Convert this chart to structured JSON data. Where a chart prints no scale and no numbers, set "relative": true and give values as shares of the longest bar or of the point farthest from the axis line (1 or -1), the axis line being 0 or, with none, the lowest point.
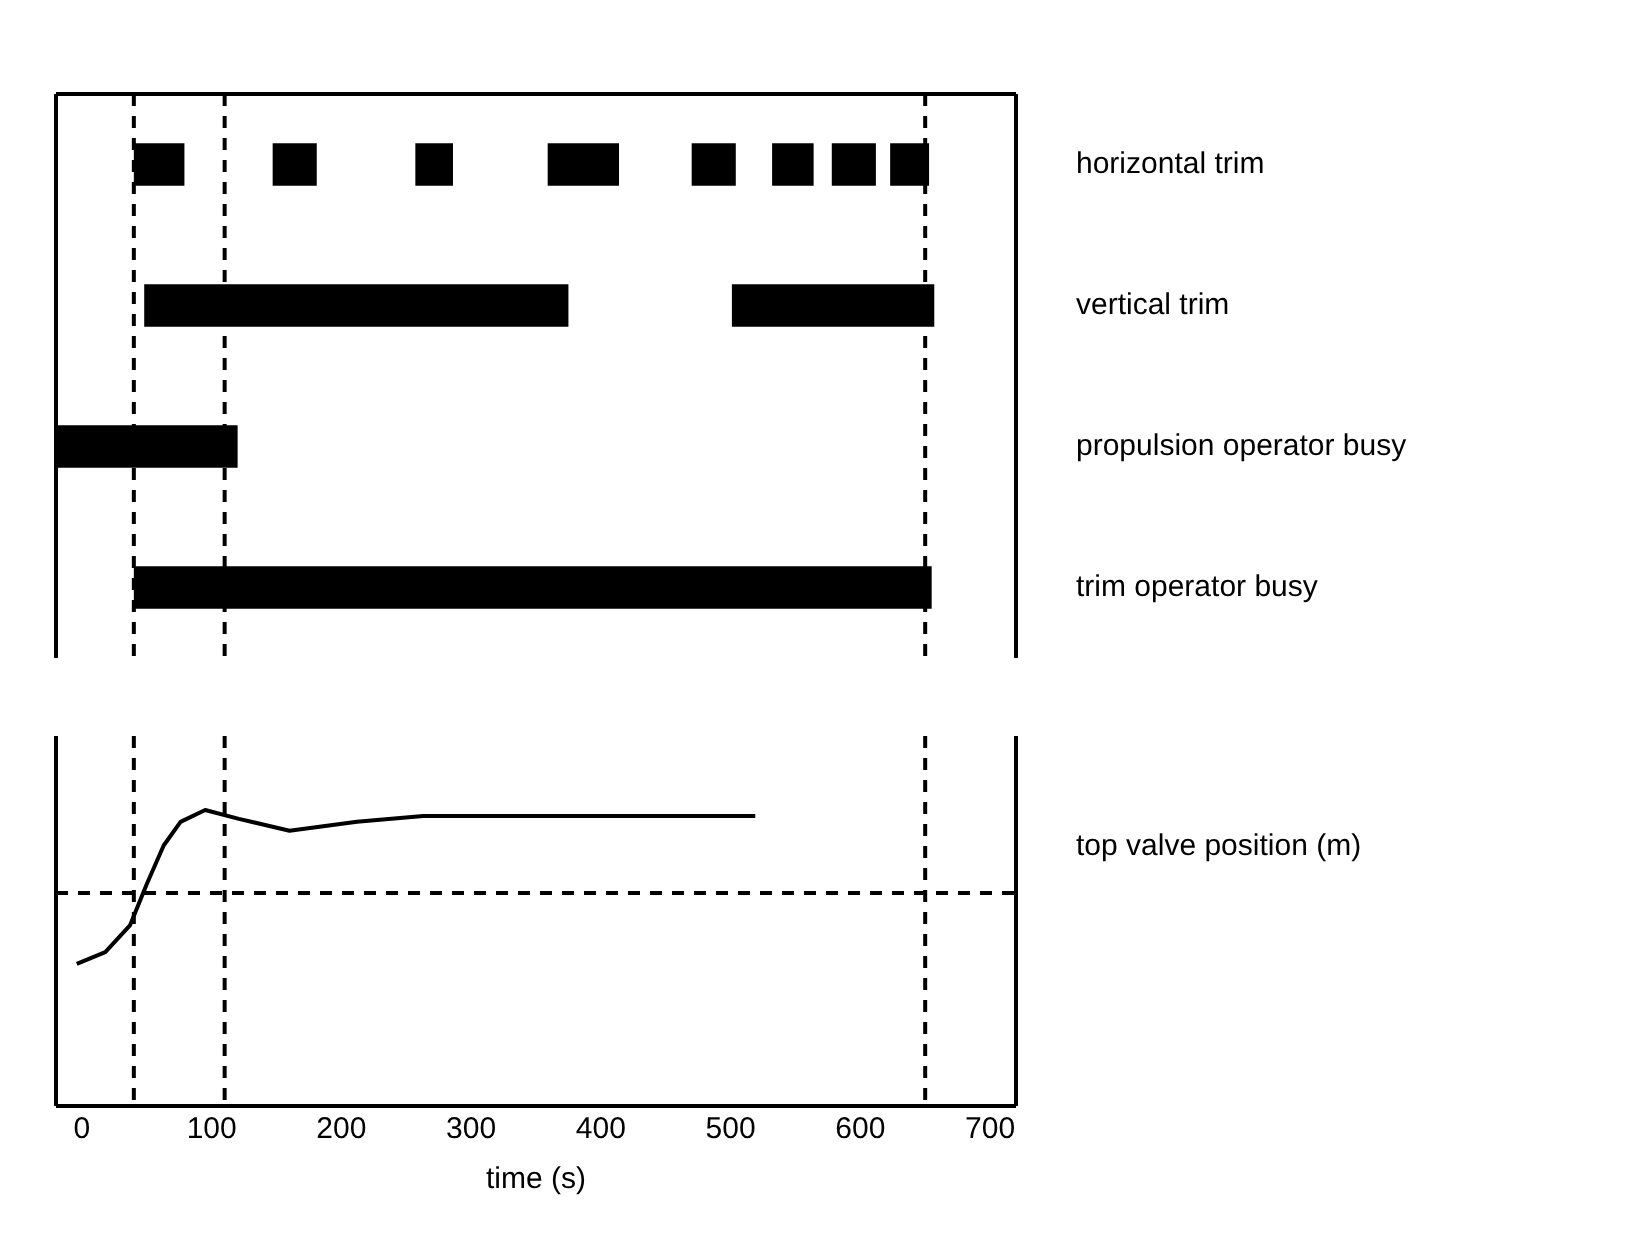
{
  "chart_data": [
    {
      "type": "bar",
      "orientation": "horizontal",
      "categories": [
        "horizontal trim",
        "vertical trim",
        "propulsion operator busy",
        "trim operator busy"
      ],
      "xlim": [
        -20,
        720
      ],
      "xticks": [
        0,
        100,
        200,
        300,
        400,
        500,
        600,
        700
      ],
      "tick_labels": "y",
      "grid": false,
      "legend": false,
      "series": [
        {
          "color": "#000000",
          "base": [
            40,
            48,
            -20,
            40
          ],
          "values": [
            39,
            327,
            140,
            615
          ]
        },
        {
          "color": "#000000",
          "base": [
            147,
            501,
            null,
            null
          ],
          "values": [
            34,
            156,
            null,
            null
          ]
        },
        {
          "color": "#000000",
          "base": [
            257,
            null,
            null,
            null
          ],
          "values": [
            29,
            null,
            null,
            null
          ]
        },
        {
          "color": "#000000",
          "base": [
            359,
            null,
            null,
            null
          ],
          "values": [
            55,
            null,
            null,
            null
          ]
        },
        {
          "color": "#000000",
          "base": [
            470,
            null,
            null,
            null
          ],
          "values": [
            34,
            null,
            null,
            null
          ]
        },
        {
          "color": "#000000",
          "base": [
            532,
            null,
            null,
            null
          ],
          "values": [
            32,
            null,
            null,
            null
          ]
        },
        {
          "color": "#000000",
          "base": [
            578,
            null,
            null,
            null
          ],
          "values": [
            34,
            null,
            null,
            null
          ]
        },
        {
          "color": "#000000",
          "base": [
            623,
            null,
            null,
            null
          ],
          "values": [
            30,
            null,
            null,
            null
          ]
        }
      ],
      "ref_lines": [
        {
          "axis": "x",
          "value": 40,
          "line_style": "dashed"
        },
        {
          "axis": "x",
          "value": 110,
          "line_style": "dashed"
        },
        {
          "axis": "x",
          "value": 650,
          "line_style": "dashed"
        }
      ]
    },
    {
      "type": "line",
      "relative": true,
      "xlabel": "time (s)",
      "ylabel": "top valve position (m)",
      "xlim": [
        -20,
        720
      ],
      "xticks": [
        0,
        100,
        200,
        300,
        400,
        500,
        600,
        700
      ],
      "tick_labels": "x",
      "grid": false,
      "legend": false,
      "marker": "none",
      "line_style": "solid",
      "series": [
        {
          "color": "#000000",
          "x": [
            -4,
            18,
            37,
            50,
            63,
            76,
            95,
            121,
            160,
            212,
            263,
            341,
            519
          ],
          "values": [
            0.48,
            0.52,
            0.61,
            0.75,
            0.88,
            0.96,
            1,
            0.97,
            0.93,
            0.96,
            0.98,
            0.98,
            0.98
          ]
        }
      ],
      "ref_lines": [
        {
          "axis": "x",
          "value": 40,
          "line_style": "dashed"
        },
        {
          "axis": "x",
          "value": 110,
          "line_style": "dashed"
        },
        {
          "axis": "x",
          "value": 650,
          "line_style": "dashed"
        },
        {
          "axis": "y",
          "value": 0.72,
          "line_style": "dashed"
        }
      ]
    }
  ]
}
